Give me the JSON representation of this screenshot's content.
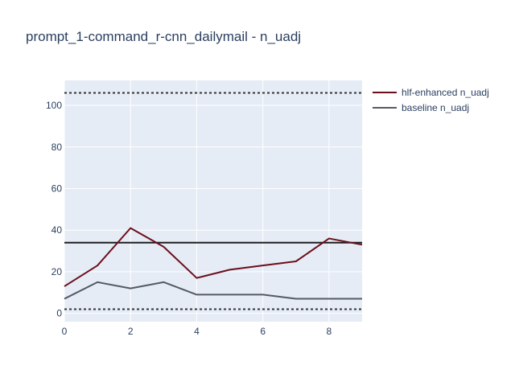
{
  "chart_data": {
    "type": "line",
    "title": "prompt_1-command_r-cnn_dailymail - n_uadj",
    "xlabel": "",
    "ylabel": "",
    "x": [
      0,
      1,
      2,
      3,
      4,
      5,
      6,
      7,
      8,
      9
    ],
    "xlim": [
      0,
      9
    ],
    "ylim": [
      -4,
      112
    ],
    "x_ticks": [
      0,
      2,
      4,
      6,
      8
    ],
    "y_ticks": [
      0,
      20,
      40,
      60,
      80,
      100
    ],
    "grid": true,
    "legend_position": "top-right",
    "series": [
      {
        "name": "hlf-enhanced n_uadj",
        "color": "#6b0f1a",
        "values": [
          13,
          23,
          41,
          32,
          17,
          21,
          23,
          25,
          36,
          33
        ]
      },
      {
        "name": "baseline n_uadj",
        "color": "#555a63",
        "values": [
          7,
          15,
          12,
          15,
          9,
          9,
          9,
          7,
          7,
          7
        ]
      }
    ],
    "reference_lines": [
      {
        "y": 106,
        "style": "dotted",
        "color": "#333333"
      },
      {
        "y": 34,
        "style": "solid",
        "color": "#1f1f1f"
      },
      {
        "y": 2,
        "style": "dotted",
        "color": "#333333"
      }
    ]
  }
}
